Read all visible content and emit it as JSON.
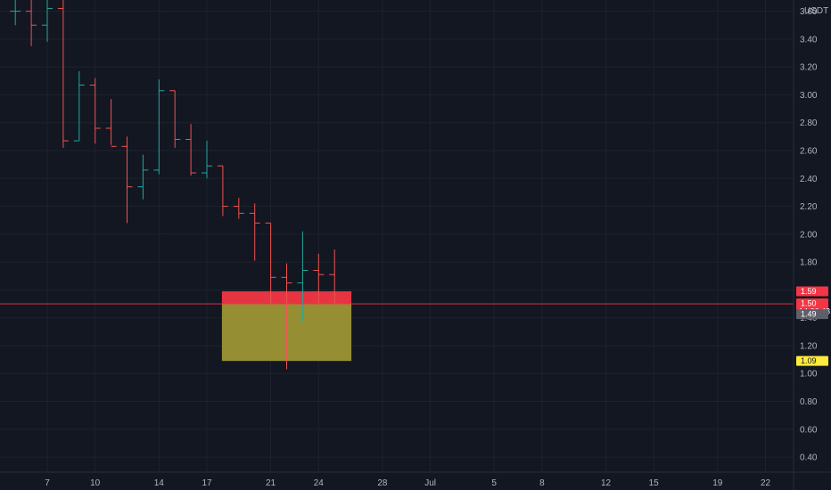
{
  "chart_data": {
    "type": "ohlc",
    "currency_label": "USDT",
    "x_tick_labels": [
      "7",
      "10",
      "14",
      "17",
      "21",
      "24",
      "28",
      "Jul",
      "5",
      "8",
      "12",
      "15",
      "19",
      "22"
    ],
    "y_ticks": [
      "0.40",
      "0.60",
      "0.80",
      "1.00",
      "1.20",
      "1.40",
      "1.60",
      "1.80",
      "2.00",
      "2.20",
      "2.40",
      "2.60",
      "2.80",
      "3.00",
      "3.20",
      "3.40",
      "3.60"
    ],
    "y_tick_values": [
      0.4,
      0.6,
      0.8,
      1.0,
      1.2,
      1.4,
      1.6,
      1.8,
      2.0,
      2.2,
      2.4,
      2.6,
      2.8,
      3.0,
      3.2,
      3.4,
      3.6
    ],
    "ylim": [
      0.25,
      3.7
    ],
    "grid": true,
    "colors": {
      "up": "#26a69a",
      "down": "#ef5350",
      "background": "#131722",
      "grid": "#1e222d",
      "axis_text": "#b2b5be"
    },
    "candles": [
      {
        "day": 5,
        "o": 3.6,
        "h": 3.7,
        "l": 3.5,
        "c": 3.6
      },
      {
        "day": 6,
        "o": 3.6,
        "h": 3.7,
        "l": 3.35,
        "c": 3.5
      },
      {
        "day": 7,
        "o": 3.5,
        "h": 3.72,
        "l": 3.38,
        "c": 3.62
      },
      {
        "day": 8,
        "o": 3.62,
        "h": 3.7,
        "l": 2.62,
        "c": 2.67
      },
      {
        "day": 9,
        "o": 2.67,
        "h": 3.17,
        "l": 2.67,
        "c": 3.07
      },
      {
        "day": 10,
        "o": 3.07,
        "h": 3.12,
        "l": 2.65,
        "c": 2.76
      },
      {
        "day": 11,
        "o": 2.76,
        "h": 2.97,
        "l": 2.64,
        "c": 2.63
      },
      {
        "day": 12,
        "o": 2.63,
        "h": 2.7,
        "l": 2.08,
        "c": 2.34
      },
      {
        "day": 13,
        "o": 2.34,
        "h": 2.57,
        "l": 2.25,
        "c": 2.46
      },
      {
        "day": 14,
        "o": 2.46,
        "h": 3.11,
        "l": 2.43,
        "c": 3.03
      },
      {
        "day": 15,
        "o": 3.03,
        "h": 3.03,
        "l": 2.62,
        "c": 2.68
      },
      {
        "day": 16,
        "o": 2.68,
        "h": 2.79,
        "l": 2.42,
        "c": 2.44
      },
      {
        "day": 17,
        "o": 2.44,
        "h": 2.67,
        "l": 2.4,
        "c": 2.49
      },
      {
        "day": 18,
        "o": 2.49,
        "h": 2.49,
        "l": 2.13,
        "c": 2.2
      },
      {
        "day": 19,
        "o": 2.2,
        "h": 2.26,
        "l": 2.11,
        "c": 2.15
      },
      {
        "day": 20,
        "o": 2.15,
        "h": 2.22,
        "l": 1.81,
        "c": 2.08
      },
      {
        "day": 21,
        "o": 2.08,
        "h": 2.08,
        "l": 1.5,
        "c": 1.69
      },
      {
        "day": 22,
        "o": 1.69,
        "h": 1.79,
        "l": 1.03,
        "c": 1.65
      },
      {
        "day": 23,
        "o": 1.65,
        "h": 2.02,
        "l": 1.37,
        "c": 1.74
      },
      {
        "day": 24,
        "o": 1.74,
        "h": 1.86,
        "l": 1.5,
        "c": 1.71
      },
      {
        "day": 25,
        "o": 1.71,
        "h": 1.89,
        "l": 1.5,
        "c": 1.5
      }
    ],
    "zones": [
      {
        "name": "red-zone",
        "from_day": 18,
        "to_day": 26,
        "top": 1.59,
        "bottom": 1.5,
        "color": "#f23645"
      },
      {
        "name": "yellow-zone",
        "from_day": 18,
        "to_day": 26,
        "top": 1.5,
        "bottom": 1.09,
        "color": "#9c9535"
      }
    ],
    "price_tags": [
      {
        "name": "tag-1-59",
        "value": 1.59,
        "label": "1.59",
        "bg": "#f23645",
        "fg": "#ffffff"
      },
      {
        "name": "tag-1-50",
        "value": 1.5,
        "label": "1.50",
        "sub": "14:36:48",
        "bg": "#f23645",
        "fg": "#ffffff"
      },
      {
        "name": "tag-1-49",
        "value": 1.49,
        "label": "1.49",
        "bg": "#5d606b",
        "fg": "#ffffff"
      },
      {
        "name": "tag-1-09",
        "value": 1.09,
        "label": "1.09",
        "bg": "#ffeb3b",
        "fg": "#131722"
      }
    ],
    "current_price_line": {
      "value": 1.5,
      "color": "#f23645"
    }
  }
}
